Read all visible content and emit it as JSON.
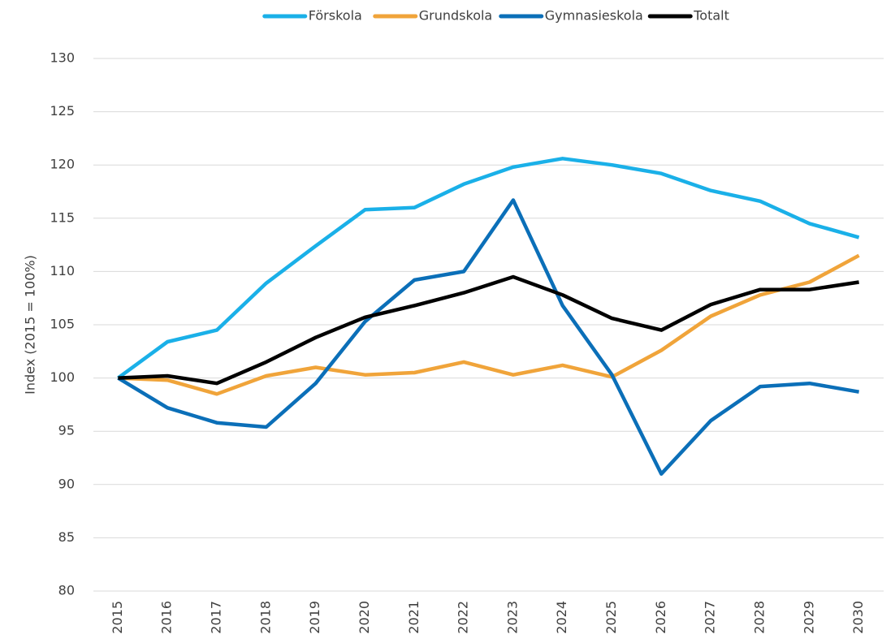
{
  "chart_data": {
    "type": "line",
    "y_label": "Index (2015 = 100%)",
    "categories": [
      "2015",
      "2016",
      "2017",
      "2018",
      "2019",
      "2020",
      "2021",
      "2022",
      "2023",
      "2024",
      "2025",
      "2026",
      "2027",
      "2028",
      "2029",
      "2030"
    ],
    "series": [
      {
        "name": "Förskola",
        "color": "#1ab0e8",
        "values": [
          100,
          103.4,
          104.5,
          108.9,
          112.4,
          115.8,
          116,
          118.2,
          119.8,
          120.6,
          120,
          119.2,
          117.6,
          116.6,
          114.5,
          113.2
        ]
      },
      {
        "name": "Grundskola",
        "color": "#f0a43a",
        "values": [
          100,
          99.8,
          98.5,
          100.2,
          101,
          100.3,
          100.5,
          101.5,
          100.3,
          101.2,
          100.1,
          102.6,
          105.8,
          107.8,
          109,
          111.5
        ]
      },
      {
        "name": "Gymnasieskola",
        "color": "#0b6fb8",
        "values": [
          100,
          97.2,
          95.8,
          95.4,
          99.5,
          105.3,
          109.2,
          110,
          116.7,
          106.8,
          100.3,
          91,
          96,
          99.2,
          99.5,
          98.7
        ]
      },
      {
        "name": "Totalt",
        "color": "#000000",
        "values": [
          100,
          100.2,
          99.5,
          101.5,
          103.8,
          105.7,
          106.8,
          108,
          109.5,
          107.8,
          105.6,
          104.5,
          106.9,
          108.3,
          108.3,
          109
        ]
      }
    ],
    "ylim": [
      80,
      130
    ],
    "yticks": [
      80,
      85,
      90,
      95,
      100,
      105,
      110,
      115,
      120,
      125,
      130
    ],
    "grid": true,
    "legend": "top"
  }
}
